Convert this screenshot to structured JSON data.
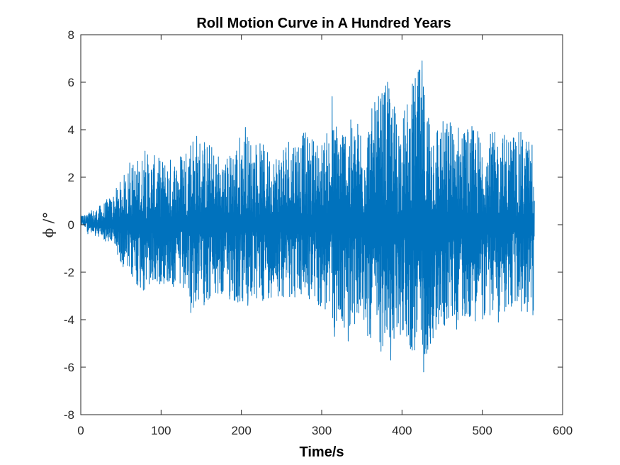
{
  "chart_data": {
    "type": "line",
    "title": "Roll Motion Curve in A Hundred Years",
    "xlabel": "Time/s",
    "ylabel": "ϕ /°",
    "xlim": [
      0,
      600
    ],
    "ylim": [
      -8,
      8
    ],
    "xticks": [
      0,
      100,
      200,
      300,
      400,
      500,
      600
    ],
    "xtick_labels": [
      "0",
      "100",
      "200",
      "300",
      "400",
      "500",
      "600"
    ],
    "yticks": [
      -8,
      -6,
      -4,
      -2,
      0,
      2,
      4,
      6,
      8
    ],
    "ytick_labels": [
      "-8",
      "-6",
      "-4",
      "-2",
      "0",
      "2",
      "4",
      "6",
      "8"
    ],
    "grid": false,
    "legend": "none",
    "series_color": "#0072BD",
    "x_end": 565,
    "envelope": {
      "x": [
        0,
        20,
        40,
        60,
        80,
        100,
        120,
        140,
        160,
        180,
        200,
        220,
        240,
        260,
        280,
        300,
        320,
        340,
        360,
        380,
        400,
        420,
        440,
        460,
        480,
        500,
        520,
        540,
        565
      ],
      "upper": [
        0.4,
        0.7,
        1.3,
        2.5,
        3.1,
        2.8,
        2.9,
        4.1,
        3.5,
        2.8,
        4.0,
        3.6,
        3.0,
        4.0,
        3.9,
        3.6,
        4.6,
        4.4,
        4.8,
        6.0,
        4.6,
        6.8,
        4.6,
        4.4,
        4.3,
        4.0,
        3.9,
        4.0,
        3.6
      ],
      "lower": [
        -0.3,
        -0.5,
        -0.9,
        -2.3,
        -3.0,
        -2.5,
        -2.8,
        -3.6,
        -3.3,
        -3.2,
        -3.5,
        -3.4,
        -3.0,
        -3.1,
        -3.2,
        -3.6,
        -4.7,
        -4.2,
        -4.9,
        -5.7,
        -4.6,
        -6.1,
        -4.9,
        -4.1,
        -4.0,
        -4.1,
        -3.8,
        -3.7,
        -3.9
      ]
    },
    "peaks": [
      {
        "x": 61,
        "y": 2.6
      },
      {
        "x": 80,
        "y": 3.1
      },
      {
        "x": 137,
        "y": 4.0
      },
      {
        "x": 137,
        "y": -3.7
      },
      {
        "x": 187,
        "y": 2.8
      },
      {
        "x": 205,
        "y": 4.1
      },
      {
        "x": 208,
        "y": -3.4
      },
      {
        "x": 313,
        "y": 5.4
      },
      {
        "x": 316,
        "y": -4.7
      },
      {
        "x": 333,
        "y": -4.9
      },
      {
        "x": 373,
        "y": 5.3
      },
      {
        "x": 376,
        "y": -5.1
      },
      {
        "x": 382,
        "y": 6.0
      },
      {
        "x": 386,
        "y": -5.7
      },
      {
        "x": 425,
        "y": 6.9
      },
      {
        "x": 427,
        "y": -6.2
      },
      {
        "x": 460,
        "y": 4.3
      },
      {
        "x": 468,
        "y": -4.4
      },
      {
        "x": 520,
        "y": -4.1
      },
      {
        "x": 548,
        "y": 3.9
      },
      {
        "x": 563,
        "y": 3.5
      },
      {
        "x": 563,
        "y": -3.8
      }
    ]
  }
}
